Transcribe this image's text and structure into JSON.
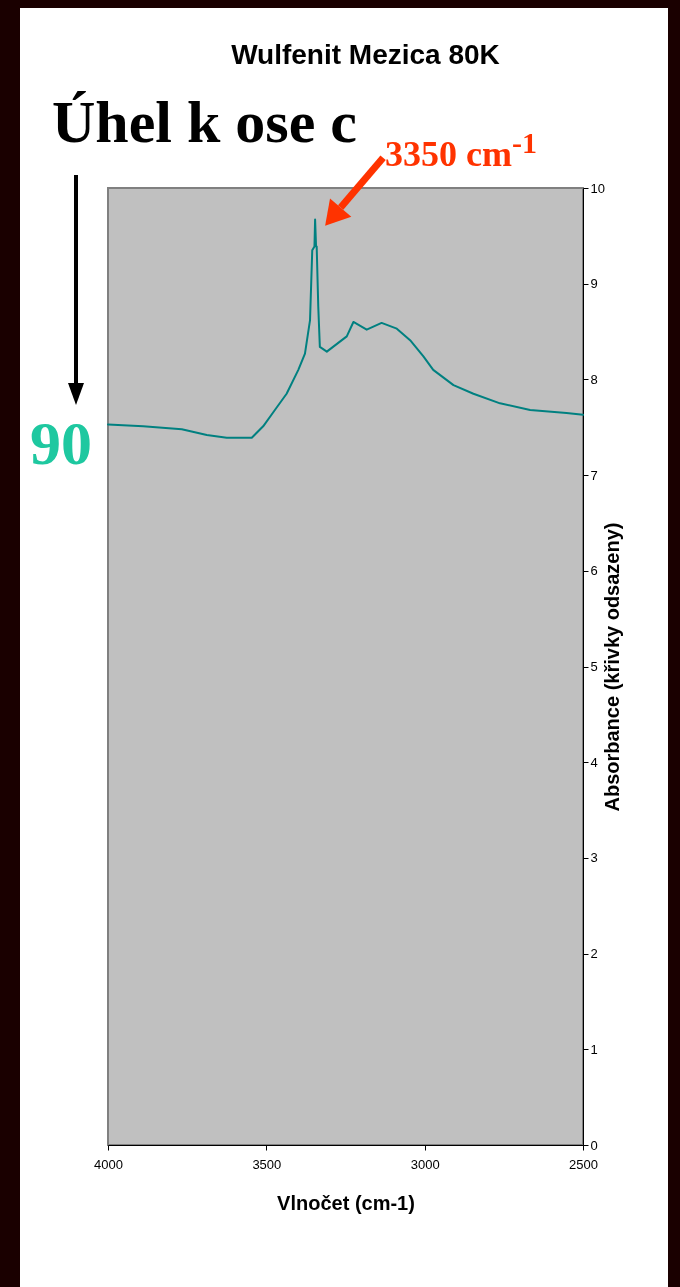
{
  "chart_data": {
    "type": "line",
    "title": "Wulfenit Mezica 80K",
    "xlabel": "Vlnočet (cm-1)",
    "ylabel": "Absorbance (křivky odsazeny)",
    "xlim": [
      4000,
      2500
    ],
    "xticks": [
      4000,
      3500,
      3000,
      2500
    ],
    "ylim": [
      0,
      10
    ],
    "yticks": [
      0,
      1,
      2,
      3,
      4,
      5,
      6,
      7,
      8,
      9,
      10
    ],
    "grid": false,
    "marker": "none",
    "line_style": "solid",
    "annotations": [
      "Úhel k ose c",
      "90",
      {
        "text": "3350 cm$^{-1}$",
        "x": 3346,
        "y": 9.5
      }
    ],
    "series": [
      {
        "color": "#008080",
        "x": [
          4000,
          3889,
          3767,
          3688,
          3625,
          3546,
          3510,
          3473,
          3436,
          3399,
          3378,
          3362,
          3355,
          3348,
          3346,
          3343,
          3341,
          3336,
          3331,
          3309,
          3246,
          3225,
          3183,
          3136,
          3088,
          3046,
          3004,
          2973,
          2909,
          2846,
          2762,
          2667,
          2552,
          2500
        ],
        "values": [
          7.53,
          7.51,
          7.48,
          7.42,
          7.39,
          7.39,
          7.51,
          7.68,
          7.85,
          8.1,
          8.27,
          8.62,
          9.35,
          9.39,
          9.67,
          9.39,
          9.39,
          8.76,
          8.34,
          8.29,
          8.45,
          8.6,
          8.52,
          8.59,
          8.53,
          8.41,
          8.24,
          8.1,
          7.94,
          7.85,
          7.75,
          7.68,
          7.65,
          7.63
        ]
      }
    ]
  }
}
